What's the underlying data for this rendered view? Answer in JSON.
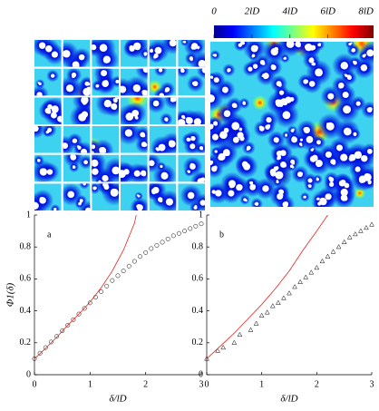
{
  "colorbar": {
    "clim": [
      0,
      8.4
    ],
    "ticks": [
      0,
      {
        "value": 2,
        "label": "2lD"
      },
      {
        "value": 4,
        "label": "4lD"
      },
      {
        "value": 6,
        "label": "6lD"
      },
      {
        "value": 8,
        "label": "8lD"
      }
    ]
  },
  "chart_data": [
    {
      "type": "scatter",
      "annotation": "a",
      "ylabel": "Φ1(δ)",
      "xlabel": "δ/lD",
      "xlim": [
        0,
        3
      ],
      "ylim": [
        0,
        1
      ],
      "xticks": [
        0,
        1,
        2,
        3
      ],
      "yticks": [
        0,
        0.2,
        0.4,
        0.6,
        0.8,
        1
      ],
      "series": [
        {
          "marker": "circle",
          "color": "#000000",
          "x": [
            0,
            0.1,
            0.2,
            0.3,
            0.4,
            0.5,
            0.6,
            0.7,
            0.8,
            0.9,
            1.0,
            1.1,
            1.2,
            1.3,
            1.4,
            1.5,
            1.6,
            1.7,
            1.8,
            1.9,
            2.0,
            2.1,
            2.2,
            2.3,
            2.4,
            2.5,
            2.6,
            2.7,
            2.8,
            2.9,
            3.0
          ],
          "values": [
            0.1,
            0.135,
            0.17,
            0.205,
            0.24,
            0.275,
            0.31,
            0.345,
            0.38,
            0.415,
            0.45,
            0.485,
            0.52,
            0.555,
            0.59,
            0.62,
            0.65,
            0.68,
            0.71,
            0.74,
            0.765,
            0.79,
            0.81,
            0.83,
            0.85,
            0.87,
            0.885,
            0.9,
            0.915,
            0.93,
            0.945
          ]
        },
        {
          "marker": "line",
          "color": "#e8231e",
          "x": [
            0,
            0.2,
            0.4,
            0.6,
            0.8,
            1.0,
            1.2,
            1.4,
            1.6,
            1.8,
            1.83
          ],
          "values": [
            0.1,
            0.165,
            0.235,
            0.31,
            0.38,
            0.455,
            0.545,
            0.65,
            0.78,
            0.95,
            1.0
          ]
        }
      ]
    },
    {
      "type": "scatter",
      "annotation": "b",
      "xlabel": "δ/lD",
      "xlim": [
        0,
        3
      ],
      "ylim": [
        0,
        1
      ],
      "xticks": [
        0,
        1,
        2,
        3
      ],
      "yticks": [
        0,
        0.2,
        0.4,
        0.6,
        0.8,
        1
      ],
      "series": [
        {
          "marker": "triangle",
          "color": "#000000",
          "x": [
            0,
            0.2,
            0.3,
            0.5,
            0.6,
            0.8,
            0.9,
            1.0,
            1.1,
            1.2,
            1.3,
            1.4,
            1.5,
            1.6,
            1.7,
            1.8,
            1.9,
            2.0,
            2.1,
            2.2,
            2.3,
            2.4,
            2.5,
            2.6,
            2.7,
            2.8,
            2.9,
            3.0
          ],
          "values": [
            0.1,
            0.15,
            0.17,
            0.2,
            0.25,
            0.28,
            0.32,
            0.37,
            0.39,
            0.43,
            0.45,
            0.48,
            0.51,
            0.55,
            0.58,
            0.61,
            0.64,
            0.67,
            0.71,
            0.74,
            0.77,
            0.8,
            0.83,
            0.86,
            0.88,
            0.9,
            0.92,
            0.94
          ]
        },
        {
          "marker": "line",
          "color": "#e8231e",
          "x": [
            0,
            0.25,
            0.5,
            0.75,
            1.0,
            1.25,
            1.5,
            1.75,
            2.0,
            2.2
          ],
          "values": [
            0.1,
            0.18,
            0.26,
            0.35,
            0.44,
            0.54,
            0.65,
            0.78,
            0.9,
            1.0
          ]
        }
      ]
    }
  ]
}
